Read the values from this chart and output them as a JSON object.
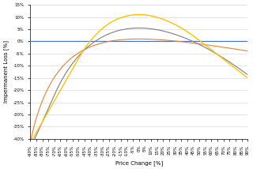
{
  "title": "",
  "xlabel": "Price Change [%]",
  "ylabel": "Impermanent Loss [%]",
  "xlim_pct": [
    -90,
    90
  ],
  "ylim": [
    -0.4,
    0.15
  ],
  "yticks": [
    -0.4,
    -0.35,
    -0.3,
    -0.25,
    -0.2,
    -0.15,
    -0.1,
    -0.05,
    0.0,
    0.05,
    0.1,
    0.15
  ],
  "ytick_labels": [
    "-40%",
    "-35%",
    "-30%",
    "-25%",
    "-20%",
    "-15%",
    "-10%",
    "-5%",
    "0%",
    "5%",
    "10%",
    "15%"
  ],
  "color_blue": "#4472C4",
  "color_orange": "#ED7D31",
  "color_gray": "#7F7F7F",
  "color_yellow": "#FFC000",
  "background_color": "#FFFFFF",
  "grid_color": "#D9D9D9",
  "font_size_axis_label": 5,
  "font_size_tick": 4.0
}
